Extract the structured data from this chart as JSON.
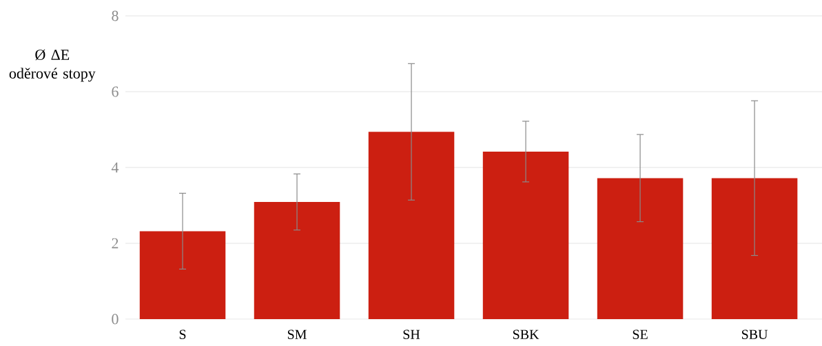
{
  "chart_data": {
    "type": "bar",
    "ylabel": "Ø ΔE oděrové stopy",
    "categories": [
      "S",
      "SM",
      "SH",
      "SBK",
      "SE",
      "SBU"
    ],
    "values": [
      2.32,
      3.09,
      4.94,
      4.42,
      3.72,
      3.72
    ],
    "errors": [
      1.0,
      0.74,
      1.8,
      0.8,
      1.15,
      2.04
    ],
    "color": "#cc1f11",
    "ylim": [
      0,
      8
    ],
    "yticks": [
      0,
      2,
      4,
      6,
      8
    ],
    "grid": "y"
  }
}
